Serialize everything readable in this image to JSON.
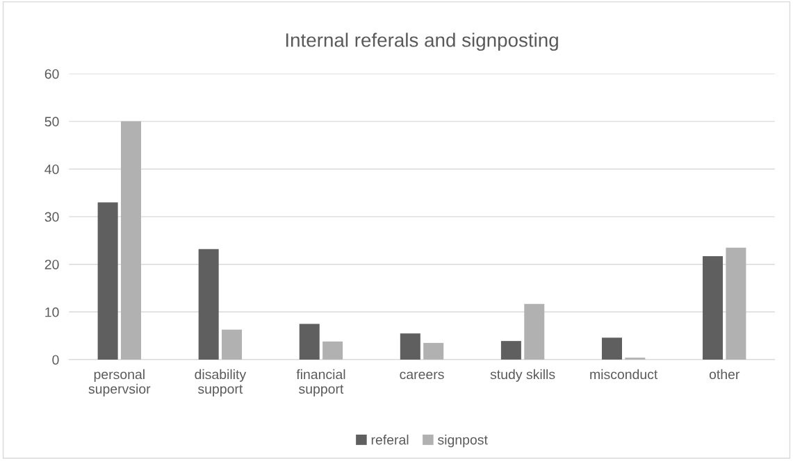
{
  "chart_data": {
    "type": "bar",
    "title": "Internal referals and signposting",
    "categories": [
      "personal supervsior",
      "disability support",
      "financial support",
      "careers",
      "study skills",
      "misconduct",
      "other"
    ],
    "series": [
      {
        "name": "referal",
        "color": "#5f5f5f",
        "values": [
          33.0,
          23.2,
          7.5,
          5.5,
          3.9,
          4.6,
          21.7
        ]
      },
      {
        "name": "signpost",
        "color": "#b1b1b1",
        "values": [
          50.0,
          6.3,
          3.8,
          3.5,
          11.7,
          0.4,
          23.5
        ]
      }
    ],
    "ylim": [
      0,
      60
    ],
    "yticks": [
      0,
      10,
      20,
      30,
      40,
      50,
      60
    ],
    "grid": "y",
    "legend": "bottom"
  }
}
